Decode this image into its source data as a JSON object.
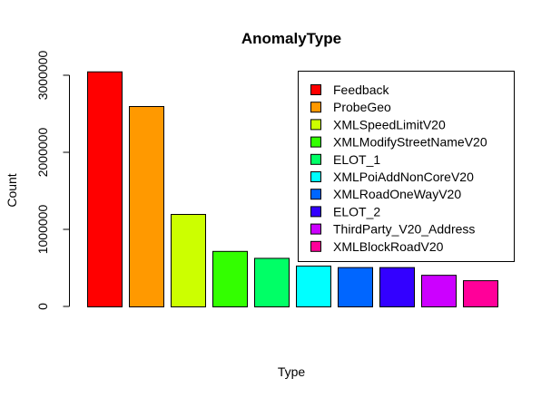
{
  "chart_data": {
    "type": "bar",
    "title": "AnomalyType",
    "xlabel": "Type",
    "ylabel": "Count",
    "ylim": [
      0,
      3000000
    ],
    "yticks": [
      0,
      1000000,
      2000000,
      3000000
    ],
    "ytick_labels": [
      "0",
      "1000000",
      "2000000",
      "3000000"
    ],
    "categories": [
      "Feedback",
      "ProbeGeo",
      "XMLSpeedLimitV20",
      "XMLModifyStreetNameV20",
      "ELOT_1",
      "XMLPoiAddNonCoreV20",
      "XMLRoadOneWayV20",
      "ELOT_2",
      "ThirdParty_V20_Address",
      "XMLBlockRoadV20"
    ],
    "values": [
      3050000,
      2600000,
      1200000,
      720000,
      630000,
      530000,
      510000,
      510000,
      410000,
      340000
    ],
    "colors": [
      "#ff0000",
      "#ff9900",
      "#ccff00",
      "#33ff00",
      "#00ff66",
      "#00ffff",
      "#0066ff",
      "#3300ff",
      "#cc00ff",
      "#ff0099"
    ],
    "legend_position": "top-right",
    "grid": false
  }
}
